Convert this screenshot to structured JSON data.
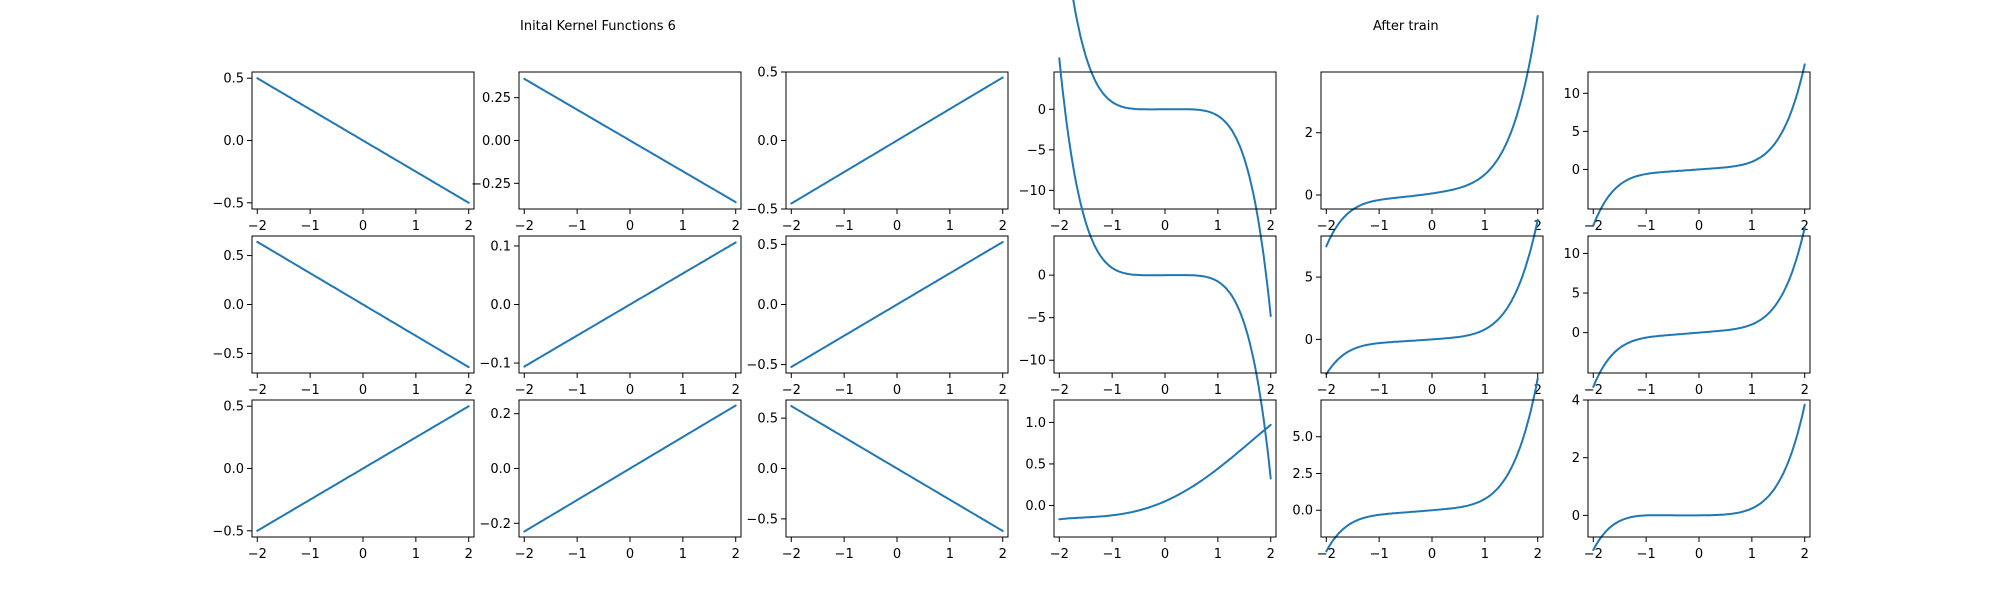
{
  "titles": {
    "left": "Inital Kernel Functions 6",
    "right": "After train"
  },
  "colors": {
    "line": "#1f77b4"
  },
  "chart_data": [
    {
      "type": "line",
      "expr": "-0.25*x",
      "x_range": [
        -2,
        2
      ],
      "xticks": [
        -2,
        -1,
        0,
        1,
        2
      ],
      "ylim": [
        -0.55,
        0.55
      ],
      "yticks": [
        -0.5,
        0.0,
        0.5
      ],
      "ytick_labels": [
        "−0.5",
        "0.0",
        "0.5"
      ]
    },
    {
      "type": "line",
      "expr": "-0.18*x",
      "x_range": [
        -2,
        2
      ],
      "xticks": [
        -2,
        -1,
        0,
        1,
        2
      ],
      "ylim": [
        -0.4,
        0.4
      ],
      "yticks": [
        -0.25,
        0.0,
        0.25
      ],
      "ytick_labels": [
        "−0.25",
        "0.00",
        "0.25"
      ]
    },
    {
      "type": "line",
      "expr": "0.23*x",
      "x_range": [
        -2,
        2
      ],
      "xticks": [
        -2,
        -1,
        0,
        1,
        2
      ],
      "ylim": [
        -0.5,
        0.5
      ],
      "yticks": [
        -0.5,
        0.0,
        0.5
      ],
      "ytick_labels": [
        "−0.5",
        "0.0",
        "0.5"
      ]
    },
    {
      "type": "line",
      "expr": "-0.8*x^5+0.05*x^4-0.1*x^3+0.05*x",
      "x_range": [
        -2,
        2
      ],
      "xticks": [
        -2,
        -1,
        0,
        1,
        2
      ],
      "ylim": [
        -12.3,
        4.6
      ],
      "yticks": [
        -10,
        -5,
        0
      ],
      "ytick_labels": [
        "−10",
        "−5",
        "0"
      ]
    },
    {
      "type": "line",
      "expr": "0.08*x^5+0.1*x^4+0.08*x^3+0.1*x^2+0.25*x+0.05",
      "x_range": [
        -2,
        2
      ],
      "xticks": [
        -2,
        -1,
        0,
        1,
        2
      ],
      "ylim": [
        -0.45,
        3.95
      ],
      "yticks": [
        0,
        2
      ],
      "ytick_labels": [
        "0",
        "2"
      ]
    },
    {
      "type": "line",
      "expr": "0.3*x^5+0.2*x^4+0.5*x",
      "x_range": [
        -2,
        2
      ],
      "xticks": [
        -2,
        -1,
        0,
        1,
        2
      ],
      "ylim": [
        -5.2,
        12.8
      ],
      "yticks": [
        0,
        5,
        10
      ],
      "ytick_labels": [
        "0",
        "5",
        "10"
      ]
    },
    {
      "type": "line",
      "expr": "-0.32*x",
      "x_range": [
        -2,
        2
      ],
      "xticks": [
        -2,
        -1,
        0,
        1,
        2
      ],
      "ylim": [
        -0.7,
        0.7
      ],
      "yticks": [
        -0.5,
        0.0,
        0.5
      ],
      "ytick_labels": [
        "−0.5",
        "0.0",
        "0.5"
      ]
    },
    {
      "type": "line",
      "expr": "0.053*x",
      "x_range": [
        -2,
        2
      ],
      "xticks": [
        -2,
        -1,
        0,
        1,
        2
      ],
      "ylim": [
        -0.117,
        0.117
      ],
      "yticks": [
        -0.1,
        0.0,
        0.1
      ],
      "ytick_labels": [
        "−0.1",
        "0.0",
        "0.1"
      ]
    },
    {
      "type": "line",
      "expr": "0.26*x",
      "x_range": [
        -2,
        2
      ],
      "xticks": [
        -2,
        -1,
        0,
        1,
        2
      ],
      "ylim": [
        -0.57,
        0.57
      ],
      "yticks": [
        -0.5,
        0.0,
        0.5
      ],
      "ytick_labels": [
        "−0.5",
        "0.0",
        "0.5"
      ]
    },
    {
      "type": "line",
      "expr": "-0.75*x^5+0.05*x^4-0.1*x^3+0.05*x",
      "x_range": [
        -2,
        2
      ],
      "xticks": [
        -2,
        -1,
        0,
        1,
        2
      ],
      "ylim": [
        -11.5,
        4.6
      ],
      "yticks": [
        -10,
        -5,
        0
      ],
      "ytick_labels": [
        "−10",
        "−5",
        "0"
      ]
    },
    {
      "type": "line",
      "expr": "0.15*x^5+0.2*x^4+0.1*x^3+0.05*x^2+0.3*x",
      "x_range": [
        -2,
        2
      ],
      "xticks": [
        -2,
        -1,
        0,
        1,
        2
      ],
      "ylim": [
        -2.7,
        8.3
      ],
      "yticks": [
        0,
        5
      ],
      "ytick_labels": [
        "0",
        "5"
      ]
    },
    {
      "type": "line",
      "expr": "0.28*x^5+0.2*x^4+0.55*x",
      "x_range": [
        -2,
        2
      ],
      "xticks": [
        -2,
        -1,
        0,
        1,
        2
      ],
      "ylim": [
        -5.1,
        12.2
      ],
      "yticks": [
        0,
        5,
        10
      ],
      "ytick_labels": [
        "0",
        "5",
        "10"
      ]
    },
    {
      "type": "line",
      "expr": "0.25*x",
      "x_range": [
        -2,
        2
      ],
      "xticks": [
        -2,
        -1,
        0,
        1,
        2
      ],
      "ylim": [
        -0.55,
        0.55
      ],
      "yticks": [
        -0.5,
        0.0,
        0.5
      ],
      "ytick_labels": [
        "−0.5",
        "0.0",
        "0.5"
      ]
    },
    {
      "type": "line",
      "expr": "0.115*x",
      "x_range": [
        -2,
        2
      ],
      "xticks": [
        -2,
        -1,
        0,
        1,
        2
      ],
      "ylim": [
        -0.25,
        0.25
      ],
      "yticks": [
        -0.2,
        0.0,
        0.2
      ],
      "ytick_labels": [
        "−0.2",
        "0.0",
        "0.2"
      ]
    },
    {
      "type": "line",
      "expr": "-0.31*x",
      "x_range": [
        -2,
        2
      ],
      "xticks": [
        -2,
        -1,
        0,
        1,
        2
      ],
      "ylim": [
        -0.68,
        0.68
      ],
      "yticks": [
        -0.5,
        0.0,
        0.5
      ],
      "ytick_labels": [
        "−0.5",
        "0.0",
        "0.5"
      ]
    },
    {
      "type": "line",
      "expr": "0.05+0.28*x+0.12*x^2+0.001*x^3-0.008*x^4",
      "x_range": [
        -2,
        2
      ],
      "xticks": [
        -2,
        -1,
        0,
        1,
        2
      ],
      "ylim": [
        -0.38,
        1.27
      ],
      "yticks": [
        0.0,
        0.5,
        1.0
      ],
      "ytick_labels": [
        "0.0",
        "0.5",
        "1.0"
      ]
    },
    {
      "type": "line",
      "expr": "0.14*x^5+0.18*x^4+0.1*x^3+0.05*x^2+0.3*x",
      "x_range": [
        -2,
        2
      ],
      "xticks": [
        -2,
        -1,
        0,
        1,
        2
      ],
      "ylim": [
        -1.82,
        7.5
      ],
      "yticks": [
        0.0,
        2.5,
        5.0
      ],
      "ytick_labels": [
        "0.0",
        "2.5",
        "5.0"
      ]
    },
    {
      "type": "line",
      "expr": "0.07*x^5+0.07*x^4+0.03*x^3+0.05*x^2+0.02*x",
      "x_range": [
        -2,
        2
      ],
      "xticks": [
        -2,
        -1,
        0,
        1,
        2
      ],
      "ylim": [
        -0.75,
        4.0
      ],
      "yticks": [
        0,
        2,
        4
      ],
      "ytick_labels": [
        "0",
        "2",
        "4"
      ]
    }
  ]
}
